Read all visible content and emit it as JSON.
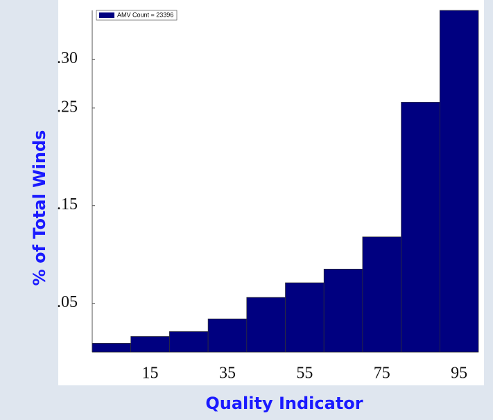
{
  "chart_data": {
    "type": "histogram",
    "xlabel": "Quality Indicator",
    "ylabel": "% of Total Winds",
    "bins": [
      0,
      10,
      20,
      30,
      40,
      50,
      60,
      70,
      80,
      90,
      100
    ],
    "series": [
      {
        "name": "AMV Count = 23396",
        "color": "#000080",
        "values": [
          0.009,
          0.016,
          0.021,
          0.034,
          0.056,
          0.071,
          0.085,
          0.118,
          0.256,
          0.35
        ]
      }
    ],
    "xlim": [
      0,
      100
    ],
    "xticks": [
      15,
      35,
      55,
      75,
      95
    ],
    "ylim": [
      0,
      0.35
    ],
    "yticks": [
      {
        "value": 0.05,
        "label": ".05"
      },
      {
        "value": 0.15,
        "label": ".15"
      },
      {
        "value": 0.25,
        "label": ".25"
      },
      {
        "value": 0.3,
        "label": ".30"
      }
    ],
    "legend": "upper left"
  }
}
